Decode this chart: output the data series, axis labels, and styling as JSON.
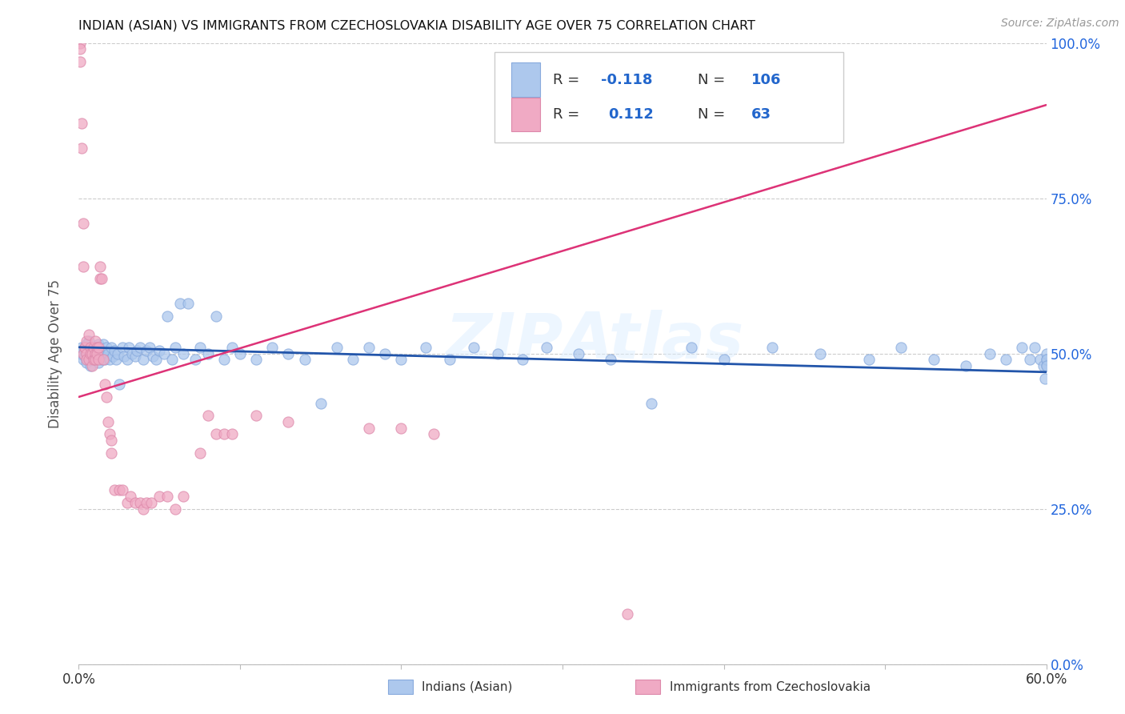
{
  "title": "INDIAN (ASIAN) VS IMMIGRANTS FROM CZECHOSLOVAKIA DISABILITY AGE OVER 75 CORRELATION CHART",
  "source": "Source: ZipAtlas.com",
  "ylabel": "Disability Age Over 75",
  "xmin": 0.0,
  "xmax": 0.6,
  "ymin": 0.0,
  "ymax": 1.0,
  "yticks": [
    0.0,
    0.25,
    0.5,
    0.75,
    1.0
  ],
  "xticks": [
    0.0,
    0.1,
    0.2,
    0.3,
    0.4,
    0.5,
    0.6
  ],
  "xtick_labels": [
    "0.0%",
    "",
    "",
    "",
    "",
    "",
    "60.0%"
  ],
  "blue_color": "#adc8ed",
  "pink_color": "#f0aac4",
  "blue_line_color": "#2255aa",
  "pink_line_color": "#dd3377",
  "watermark": "ZIPAtlas",
  "blue_scatter_x": [
    0.001,
    0.002,
    0.003,
    0.004,
    0.004,
    0.005,
    0.005,
    0.006,
    0.006,
    0.007,
    0.007,
    0.008,
    0.008,
    0.009,
    0.009,
    0.01,
    0.01,
    0.011,
    0.011,
    0.012,
    0.012,
    0.013,
    0.013,
    0.014,
    0.014,
    0.015,
    0.015,
    0.016,
    0.016,
    0.017,
    0.018,
    0.019,
    0.02,
    0.021,
    0.022,
    0.023,
    0.024,
    0.025,
    0.027,
    0.028,
    0.03,
    0.031,
    0.033,
    0.035,
    0.036,
    0.038,
    0.04,
    0.042,
    0.044,
    0.046,
    0.048,
    0.05,
    0.053,
    0.055,
    0.058,
    0.06,
    0.063,
    0.065,
    0.068,
    0.072,
    0.075,
    0.08,
    0.085,
    0.09,
    0.095,
    0.1,
    0.11,
    0.12,
    0.13,
    0.14,
    0.15,
    0.16,
    0.17,
    0.18,
    0.19,
    0.2,
    0.215,
    0.23,
    0.245,
    0.26,
    0.275,
    0.29,
    0.31,
    0.33,
    0.355,
    0.38,
    0.4,
    0.43,
    0.46,
    0.49,
    0.51,
    0.53,
    0.55,
    0.565,
    0.575,
    0.585,
    0.59,
    0.593,
    0.596,
    0.598,
    0.599,
    0.6,
    0.6,
    0.6,
    0.6,
    0.6
  ],
  "blue_scatter_y": [
    0.5,
    0.51,
    0.49,
    0.505,
    0.495,
    0.515,
    0.485,
    0.5,
    0.52,
    0.48,
    0.51,
    0.5,
    0.49,
    0.505,
    0.495,
    0.51,
    0.49,
    0.505,
    0.495,
    0.515,
    0.485,
    0.5,
    0.51,
    0.49,
    0.505,
    0.495,
    0.515,
    0.5,
    0.49,
    0.51,
    0.5,
    0.49,
    0.51,
    0.495,
    0.505,
    0.49,
    0.5,
    0.45,
    0.51,
    0.495,
    0.49,
    0.51,
    0.5,
    0.495,
    0.505,
    0.51,
    0.49,
    0.505,
    0.51,
    0.495,
    0.49,
    0.505,
    0.5,
    0.56,
    0.49,
    0.51,
    0.58,
    0.5,
    0.58,
    0.49,
    0.51,
    0.5,
    0.56,
    0.49,
    0.51,
    0.5,
    0.49,
    0.51,
    0.5,
    0.49,
    0.42,
    0.51,
    0.49,
    0.51,
    0.5,
    0.49,
    0.51,
    0.49,
    0.51,
    0.5,
    0.49,
    0.51,
    0.5,
    0.49,
    0.42,
    0.51,
    0.49,
    0.51,
    0.5,
    0.49,
    0.51,
    0.49,
    0.48,
    0.5,
    0.49,
    0.51,
    0.49,
    0.51,
    0.49,
    0.48,
    0.46,
    0.49,
    0.5,
    0.48,
    0.49,
    0.48
  ],
  "pink_scatter_x": [
    0.001,
    0.001,
    0.001,
    0.002,
    0.002,
    0.003,
    0.003,
    0.003,
    0.004,
    0.004,
    0.005,
    0.005,
    0.005,
    0.006,
    0.006,
    0.007,
    0.007,
    0.008,
    0.008,
    0.009,
    0.009,
    0.01,
    0.01,
    0.01,
    0.011,
    0.011,
    0.012,
    0.012,
    0.013,
    0.013,
    0.014,
    0.015,
    0.016,
    0.017,
    0.018,
    0.019,
    0.02,
    0.02,
    0.022,
    0.025,
    0.027,
    0.03,
    0.032,
    0.035,
    0.038,
    0.04,
    0.042,
    0.045,
    0.05,
    0.055,
    0.06,
    0.065,
    0.075,
    0.08,
    0.085,
    0.09,
    0.095,
    0.11,
    0.13,
    0.18,
    0.2,
    0.22,
    0.34
  ],
  "pink_scatter_y": [
    1.0,
    0.99,
    0.97,
    0.87,
    0.83,
    0.71,
    0.64,
    0.5,
    0.51,
    0.51,
    0.5,
    0.52,
    0.49,
    0.53,
    0.49,
    0.51,
    0.5,
    0.5,
    0.48,
    0.51,
    0.49,
    0.5,
    0.52,
    0.49,
    0.51,
    0.5,
    0.49,
    0.51,
    0.64,
    0.62,
    0.62,
    0.49,
    0.45,
    0.43,
    0.39,
    0.37,
    0.36,
    0.34,
    0.28,
    0.28,
    0.28,
    0.26,
    0.27,
    0.26,
    0.26,
    0.25,
    0.26,
    0.26,
    0.27,
    0.27,
    0.25,
    0.27,
    0.34,
    0.4,
    0.37,
    0.37,
    0.37,
    0.4,
    0.39,
    0.38,
    0.38,
    0.37,
    0.08
  ],
  "pink_trendline_x": [
    0.0,
    0.6
  ],
  "pink_trendline_y": [
    0.43,
    0.9
  ],
  "blue_trendline_x": [
    0.0,
    0.6
  ],
  "blue_trendline_y": [
    0.51,
    0.47
  ]
}
